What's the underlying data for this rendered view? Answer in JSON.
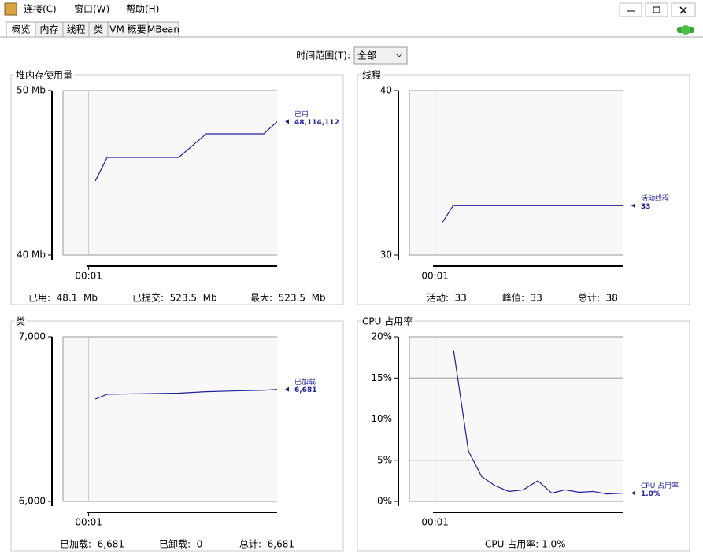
{
  "window": {
    "menu": [
      "连接(C)",
      "窗口(W)",
      "帮助(H)"
    ]
  },
  "tabs": [
    "概览",
    "内存",
    "线程",
    "类",
    "VM 概要",
    "MBean"
  ],
  "time_range": {
    "label": "时间范围(T):",
    "value": "全部"
  },
  "chart_data": [
    {
      "type": "line",
      "title": "堆内存使用量",
      "xlim": [
        48,
        148
      ],
      "xticks": [
        {
          "value": 60,
          "label": "00:01"
        }
      ],
      "ylim": [
        40,
        50
      ],
      "yticks": [
        {
          "value": 40,
          "label": "40 Mb"
        },
        {
          "value": 50,
          "label": "50 Mb"
        }
      ],
      "series": [
        {
          "name": "已用",
          "color": "#1f1f9a",
          "x": [
            63.1,
            68.6,
            102,
            114.9,
            141.8,
            148
          ],
          "values": [
            44.5,
            45.93,
            45.93,
            47.37,
            47.37,
            48.114112
          ],
          "value_labels": [
            null,
            null,
            null,
            null,
            null,
            "48,114,112"
          ]
        }
      ],
      "status": [
        "已用:  48.1  Mb",
        "已提交:  523.5  Mb",
        "最大:  523.5  Mb"
      ]
    },
    {
      "type": "line",
      "title": "线程",
      "xlim": [
        48,
        148
      ],
      "xticks": [
        {
          "value": 60,
          "label": "00:01"
        }
      ],
      "ylim": [
        30,
        40
      ],
      "yticks": [
        30,
        40
      ],
      "series": [
        {
          "name": "活动线程",
          "color": "#1f1f9a",
          "x": [
            63.6,
            68.4,
            148
          ],
          "values": [
            32,
            33,
            33
          ],
          "value_labels": [
            null,
            null,
            "33"
          ]
        }
      ],
      "status": [
        "活动:  33",
        "峰值:  33",
        "总计:  38"
      ]
    },
    {
      "type": "line",
      "title": "类",
      "xlim": [
        48,
        148
      ],
      "xticks": [
        {
          "value": 60,
          "label": "00:01"
        }
      ],
      "ylim": [
        6000,
        7000
      ],
      "yticks": [
        {
          "value": 6000,
          "label": "6,000"
        },
        {
          "value": 7000,
          "label": "7,000"
        }
      ],
      "series": [
        {
          "name": "已加载",
          "color": "#1f1f9a",
          "x": [
            63.1,
            68.6,
            102,
            114.9,
            128.7,
            141.8,
            148
          ],
          "values": [
            6622,
            6651,
            6658,
            6667,
            6672,
            6676,
            6681
          ],
          "value_labels": [
            null,
            null,
            null,
            null,
            null,
            null,
            "6,681"
          ]
        }
      ],
      "status": [
        "已加载:  6,681",
        "已卸载:  0",
        "总计:  6,681"
      ]
    },
    {
      "type": "line",
      "title": "CPU 占用率",
      "xlim": [
        48,
        148
      ],
      "xticks": [
        {
          "value": 60,
          "label": "00:01"
        }
      ],
      "ylim": [
        0,
        20
      ],
      "yticks": [
        {
          "value": 0,
          "label": "0%"
        },
        {
          "value": 5,
          "label": "5%"
        },
        {
          "value": 10,
          "label": "10%"
        },
        {
          "value": 15,
          "label": "15%"
        },
        {
          "value": 20,
          "label": "20%"
        }
      ],
      "series": [
        {
          "name": "CPU 占用率",
          "color": "#1f1f9a",
          "x": [
            68.7,
            75.6,
            81.8,
            88,
            94.5,
            101.1,
            108,
            114.5,
            120.7,
            127.3,
            133.8,
            140.4,
            148
          ],
          "values": [
            18.3,
            6.1,
            3.0,
            1.9,
            1.2,
            1.4,
            2.5,
            1.0,
            1.4,
            1.1,
            1.2,
            0.9,
            1.0
          ],
          "value_labels": [
            null,
            null,
            null,
            null,
            null,
            null,
            null,
            null,
            null,
            null,
            null,
            null,
            "1.0%"
          ]
        }
      ],
      "status": [
        "CPU 占用率: 1.0%"
      ]
    }
  ]
}
